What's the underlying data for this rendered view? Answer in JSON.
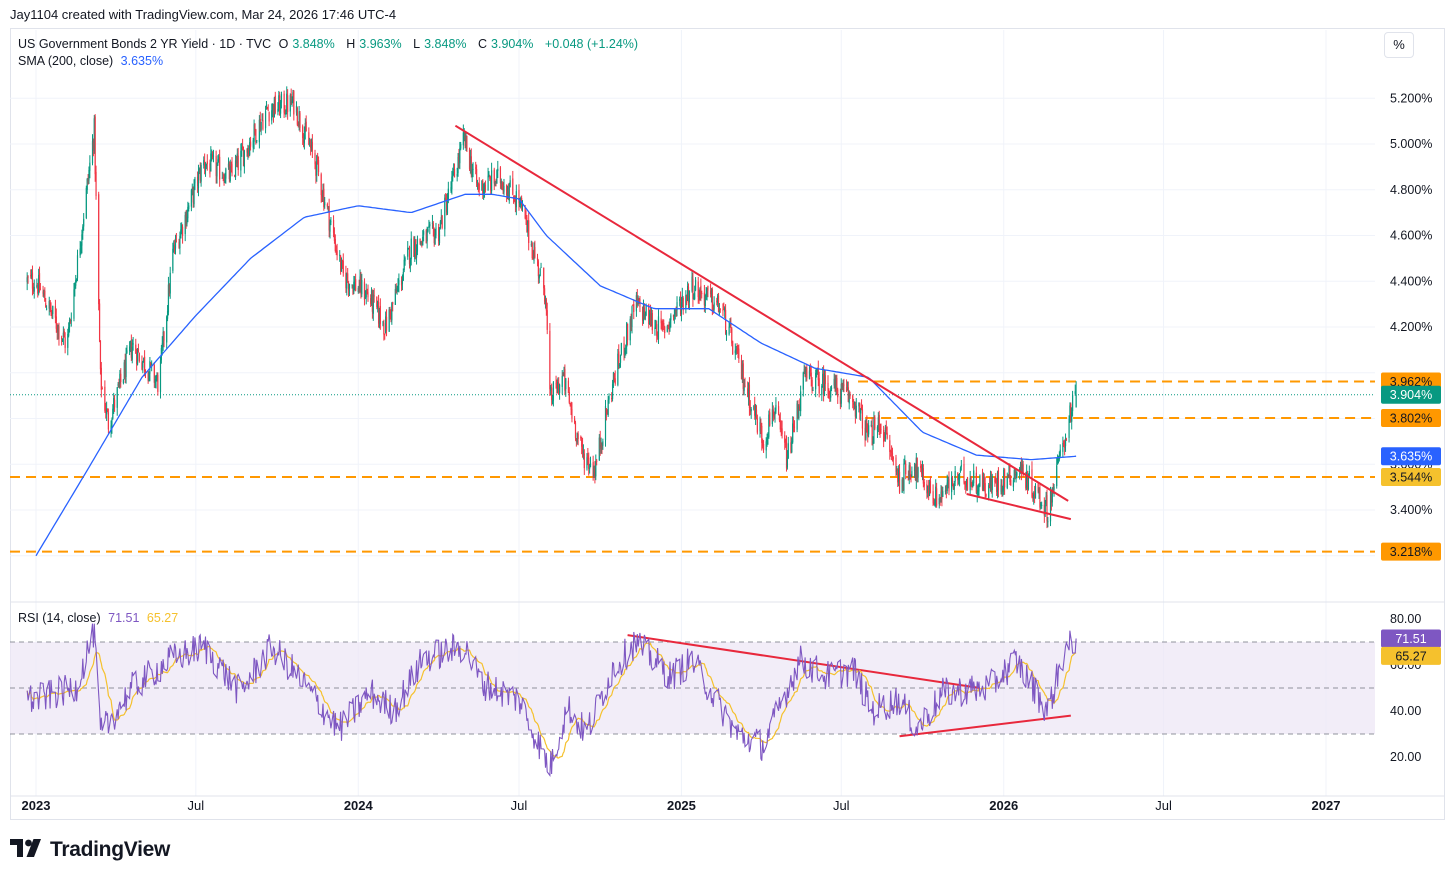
{
  "header": {
    "text": "Jay1104 created with TradingView.com, Mar 24, 2026 17:46 UTC-4"
  },
  "legend": {
    "title": "US Government Bonds 2 YR Yield · 1D · TVC",
    "o_label": "O",
    "o_value": "3.848%",
    "h_label": "H",
    "h_value": "3.963%",
    "l_label": "L",
    "l_value": "3.848%",
    "c_label": "C",
    "c_value": "3.904%",
    "change": "+0.048 (+1.24%)",
    "sma_label": "SMA (200, close)",
    "sma_value": "3.635%",
    "rsi_label": "RSI (14, close)",
    "rsi_value": "71.51",
    "rsi_ma_value": "65.27"
  },
  "toolbar": {
    "percent_button": "%"
  },
  "brand": {
    "name": "TradingView",
    "logo_icon": "tradingview-logo-icon"
  },
  "colors": {
    "up": "#089981",
    "down": "#f23645",
    "sma": "#2962ff",
    "rsi": "#7e57c2",
    "rsi_ma": "#f5c12d",
    "level": "#ff9800",
    "trend": "#e8283c"
  },
  "chart_data": [
    {
      "type": "candlestick",
      "title": "US Government Bonds 2 YR Yield · 1D · TVC",
      "ylim": [
        3.13,
        5.42
      ],
      "y_ticks": [
        "5.200%",
        "5.000%",
        "4.800%",
        "4.600%",
        "4.400%",
        "4.200%",
        "3.400%"
      ],
      "x_ticks": [
        "2023",
        "Jul",
        "2024",
        "Jul",
        "2025",
        "Jul",
        "2026",
        "Jul",
        "2027"
      ],
      "price_path": [
        [
          "2023-01-01",
          4.4
        ],
        [
          "2023-02-05",
          4.12
        ],
        [
          "2023-03-08",
          5.06
        ],
        [
          "2023-03-15",
          3.97
        ],
        [
          "2023-03-24",
          3.78
        ],
        [
          "2023-04-20",
          4.12
        ],
        [
          "2023-05-20",
          3.95
        ],
        [
          "2023-06-05",
          4.52
        ],
        [
          "2023-07-10",
          4.92
        ],
        [
          "2023-08-10",
          4.86
        ],
        [
          "2023-09-20",
          5.15
        ],
        [
          "2023-10-20",
          5.18
        ],
        [
          "2023-11-15",
          4.9
        ],
        [
          "2023-12-15",
          4.42
        ],
        [
          "2024-01-10",
          4.35
        ],
        [
          "2024-02-01",
          4.2
        ],
        [
          "2024-03-01",
          4.55
        ],
        [
          "2024-04-01",
          4.62
        ],
        [
          "2024-04-30",
          5.02
        ],
        [
          "2024-05-15",
          4.81
        ],
        [
          "2024-06-10",
          4.85
        ],
        [
          "2024-07-01",
          4.75
        ],
        [
          "2024-07-31",
          4.35
        ],
        [
          "2024-08-05",
          3.88
        ],
        [
          "2024-08-20",
          3.98
        ],
        [
          "2024-09-10",
          3.65
        ],
        [
          "2024-09-25",
          3.58
        ],
        [
          "2024-10-15",
          3.95
        ],
        [
          "2024-11-10",
          4.3
        ],
        [
          "2024-12-10",
          4.18
        ],
        [
          "2025-01-13",
          4.38
        ],
        [
          "2025-02-15",
          4.28
        ],
        [
          "2025-03-10",
          4.0
        ],
        [
          "2025-04-04",
          3.7
        ],
        [
          "2025-04-15",
          3.85
        ],
        [
          "2025-05-01",
          3.62
        ],
        [
          "2025-05-20",
          3.98
        ],
        [
          "2025-06-15",
          3.95
        ],
        [
          "2025-07-15",
          3.88
        ],
        [
          "2025-08-01",
          3.72
        ],
        [
          "2025-08-15",
          3.78
        ],
        [
          "2025-09-05",
          3.53
        ],
        [
          "2025-09-20",
          3.6
        ],
        [
          "2025-10-16",
          3.45
        ],
        [
          "2025-11-15",
          3.55
        ],
        [
          "2025-12-15",
          3.5
        ],
        [
          "2026-01-20",
          3.58
        ],
        [
          "2026-02-20",
          3.4
        ],
        [
          "2026-03-05",
          3.62
        ],
        [
          "2026-03-16",
          3.8
        ],
        [
          "2026-03-24",
          3.904
        ]
      ],
      "sma_200": [
        [
          "2023-01-01",
          3.2
        ],
        [
          "2023-03-01",
          3.58
        ],
        [
          "2023-05-01",
          3.98
        ],
        [
          "2023-07-01",
          4.25
        ],
        [
          "2023-09-01",
          4.5
        ],
        [
          "2023-11-01",
          4.68
        ],
        [
          "2024-01-01",
          4.73
        ],
        [
          "2024-03-01",
          4.7
        ],
        [
          "2024-05-01",
          4.78
        ],
        [
          "2024-06-01",
          4.78
        ],
        [
          "2024-07-01",
          4.76
        ],
        [
          "2024-08-01",
          4.6
        ],
        [
          "2024-10-01",
          4.38
        ],
        [
          "2024-12-01",
          4.28
        ],
        [
          "2025-02-01",
          4.28
        ],
        [
          "2025-04-01",
          4.13
        ],
        [
          "2025-06-01",
          4.02
        ],
        [
          "2025-08-01",
          3.98
        ],
        [
          "2025-10-01",
          3.74
        ],
        [
          "2025-12-01",
          3.64
        ],
        [
          "2026-02-01",
          3.62
        ],
        [
          "2026-03-24",
          3.635
        ]
      ],
      "horizontal_levels": [
        {
          "value": 3.962,
          "label": "3.962%"
        },
        {
          "value": 3.904,
          "label": "3.904%",
          "style": "last-price"
        },
        {
          "value": 3.802,
          "label": "3.802%"
        },
        {
          "value": 3.635,
          "label": "3.635%",
          "style": "sma"
        },
        {
          "value": 3.544,
          "label": "3.544%"
        },
        {
          "value": 3.218,
          "label": "3.218%"
        }
      ],
      "trendlines": [
        {
          "from": [
            "2024-04-20",
            5.08
          ],
          "to": [
            "2026-03-15",
            3.44
          ]
        },
        {
          "from": [
            "2025-11-20",
            3.47
          ],
          "to": [
            "2026-03-18",
            3.36
          ]
        }
      ]
    },
    {
      "type": "line",
      "title": "RSI (14, close)",
      "ylim": [
        10,
        82
      ],
      "y_ticks": [
        "80.00",
        "60.00",
        "40.00",
        "20.00"
      ],
      "bands": [
        70,
        50,
        30
      ],
      "rsi_path": [
        [
          "2023-01-01",
          45
        ],
        [
          "2023-02-15",
          50
        ],
        [
          "2023-03-08",
          75
        ],
        [
          "2023-03-15",
          30
        ],
        [
          "2023-04-20",
          50
        ],
        [
          "2023-06-01",
          62
        ],
        [
          "2023-07-10",
          68
        ],
        [
          "2023-08-20",
          48
        ],
        [
          "2023-09-25",
          68
        ],
        [
          "2023-10-25",
          55
        ],
        [
          "2023-12-10",
          32
        ],
        [
          "2024-01-15",
          48
        ],
        [
          "2024-02-10",
          40
        ],
        [
          "2024-03-15",
          63
        ],
        [
          "2024-04-30",
          68
        ],
        [
          "2024-05-20",
          52
        ],
        [
          "2024-07-01",
          45
        ],
        [
          "2024-08-05",
          15
        ],
        [
          "2024-08-25",
          42
        ],
        [
          "2024-09-15",
          30
        ],
        [
          "2024-10-15",
          58
        ],
        [
          "2024-11-10",
          70
        ],
        [
          "2024-12-20",
          55
        ],
        [
          "2025-01-13",
          62
        ],
        [
          "2025-03-05",
          30
        ],
        [
          "2025-04-04",
          25
        ],
        [
          "2025-05-15",
          62
        ],
        [
          "2025-06-15",
          55
        ],
        [
          "2025-07-15",
          58
        ],
        [
          "2025-08-05",
          40
        ],
        [
          "2025-09-05",
          45
        ],
        [
          "2025-09-25",
          32
        ],
        [
          "2025-10-25",
          48
        ],
        [
          "2025-12-15",
          50
        ],
        [
          "2026-01-15",
          62
        ],
        [
          "2026-02-20",
          40
        ],
        [
          "2026-03-10",
          65
        ],
        [
          "2026-03-24",
          71.51
        ]
      ],
      "ma_value": 65.27,
      "trendlines": [
        {
          "from": [
            "2024-11-01",
            73
          ],
          "to": [
            "2025-12-05",
            50
          ]
        },
        {
          "from": [
            "2025-09-05",
            29
          ],
          "to": [
            "2026-03-18",
            38
          ]
        }
      ],
      "labels": [
        {
          "value": 71.51,
          "label": "71.51"
        },
        {
          "value": 65.27,
          "label": "65.27"
        }
      ]
    }
  ]
}
